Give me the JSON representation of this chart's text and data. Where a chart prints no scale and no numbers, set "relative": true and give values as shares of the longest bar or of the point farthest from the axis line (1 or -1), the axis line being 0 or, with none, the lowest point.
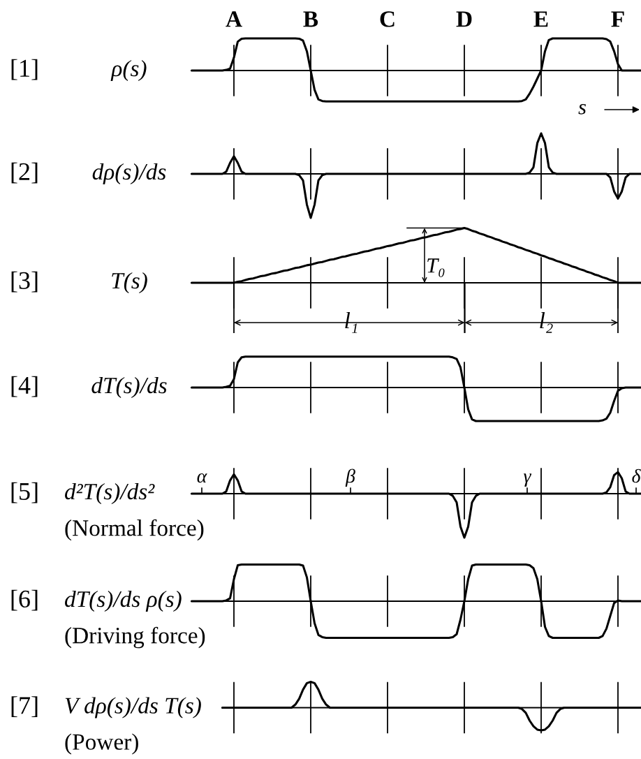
{
  "chart_data": [
    {
      "type": "line",
      "annotations": [
        "[1]"
      ],
      "ylabel": "ρ(s)",
      "xlabel": "s",
      "relative": true,
      "color": "#000000",
      "tick_labels": "x",
      "categories": [
        null,
        null,
        null,
        null,
        null,
        null,
        null,
        null,
        null,
        null,
        null,
        "A",
        null,
        null,
        null,
        null,
        null,
        null,
        null,
        null,
        null,
        null,
        null,
        null,
        null,
        null,
        null,
        null,
        null,
        null,
        null,
        "B",
        null,
        null,
        null,
        null,
        null,
        null,
        null,
        null,
        null,
        null,
        null,
        null,
        null,
        null,
        null,
        null,
        null,
        null,
        null,
        "C",
        null,
        null,
        null,
        null,
        null,
        null,
        null,
        null,
        null,
        null,
        null,
        null,
        null,
        null,
        null,
        null,
        null,
        null,
        null,
        "D",
        null,
        null,
        null,
        null,
        null,
        null,
        null,
        null,
        null,
        null,
        null,
        null,
        null,
        null,
        null,
        null,
        null,
        null,
        null,
        "E",
        null,
        null,
        null,
        null,
        null,
        null,
        null,
        null,
        null,
        null,
        null,
        null,
        null,
        null,
        null,
        null,
        null,
        null,
        null,
        "F",
        null,
        null,
        null,
        null,
        null,
        null
      ],
      "values": [
        0,
        0,
        0,
        0,
        0,
        0,
        0,
        0,
        0,
        0.02,
        0.06,
        0.4,
        0.9,
        0.99,
        1,
        1,
        1,
        1,
        1,
        1,
        1,
        1,
        1,
        1,
        1,
        1,
        1,
        1,
        0.99,
        0.93,
        0.6,
        0,
        -0.6,
        -0.9,
        -0.95,
        -0.96,
        -0.96,
        -0.96,
        -0.96,
        -0.96,
        -0.96,
        -0.96,
        -0.96,
        -0.96,
        -0.96,
        -0.96,
        -0.96,
        -0.96,
        -0.96,
        -0.96,
        -0.96,
        -0.96,
        -0.96,
        -0.96,
        -0.96,
        -0.96,
        -0.96,
        -0.96,
        -0.96,
        -0.96,
        -0.96,
        -0.96,
        -0.96,
        -0.96,
        -0.96,
        -0.96,
        -0.96,
        -0.96,
        -0.96,
        -0.96,
        -0.96,
        -0.96,
        -0.96,
        -0.96,
        -0.96,
        -0.96,
        -0.96,
        -0.96,
        -0.96,
        -0.96,
        -0.96,
        -0.96,
        -0.96,
        -0.96,
        -0.96,
        -0.96,
        -0.95,
        -0.9,
        -0.72,
        -0.5,
        -0.25,
        0,
        0.6,
        0.95,
        1,
        1,
        1,
        1,
        1,
        1,
        1,
        1,
        1,
        1,
        1,
        1,
        1,
        1,
        0.98,
        0.9,
        0.6,
        0.2,
        0,
        0,
        0,
        0,
        0,
        0
      ]
    },
    {
      "type": "line",
      "annotations": [
        "[2]"
      ],
      "ylabel": "dρ(s)/ds",
      "relative": true,
      "color": "#000000",
      "tick_labels": false,
      "categories": [
        null,
        null,
        null,
        null,
        null,
        null,
        null,
        null,
        null,
        null,
        null,
        null,
        null,
        null,
        null,
        null,
        null,
        null,
        null,
        null,
        null,
        null,
        null,
        null,
        null,
        null,
        null,
        null,
        null,
        null,
        null,
        null,
        null,
        null,
        null,
        null,
        null,
        null,
        null,
        null,
        null,
        null,
        null,
        null,
        null,
        null,
        null,
        null,
        null,
        null,
        null,
        null,
        null,
        null,
        null,
        null,
        null,
        null,
        null,
        null,
        null,
        null,
        null,
        null,
        null,
        null,
        null,
        null,
        null,
        null,
        null,
        null,
        null,
        null,
        null,
        null,
        null,
        null,
        null,
        null,
        null,
        null,
        null,
        null,
        null,
        null,
        null,
        null,
        null,
        null,
        null,
        null,
        null,
        null,
        null,
        null,
        null,
        null,
        null,
        null,
        null,
        null,
        null,
        null,
        null,
        null,
        null,
        null,
        null,
        null,
        null,
        null,
        null,
        null,
        null,
        null,
        null,
        null
      ],
      "values": [
        0,
        0,
        0,
        0,
        0,
        0,
        0,
        0,
        0,
        0.05,
        0.25,
        0.4,
        0.25,
        0.05,
        0,
        0,
        0,
        0,
        0,
        0,
        0,
        0,
        0,
        0,
        0,
        0,
        0,
        0,
        -0.03,
        -0.15,
        -0.7,
        -1,
        -0.7,
        -0.15,
        -0.03,
        0,
        0,
        0,
        0,
        0,
        0,
        0,
        0,
        0,
        0,
        0,
        0,
        0,
        0,
        0,
        0,
        0,
        0,
        0,
        0,
        0,
        0,
        0,
        0,
        0,
        0,
        0,
        0,
        0,
        0,
        0,
        0,
        0,
        0,
        0,
        0,
        0,
        0,
        0,
        0,
        0,
        0,
        0,
        0,
        0,
        0,
        0,
        0,
        0,
        0,
        0,
        0,
        0,
        0.03,
        0.15,
        0.7,
        0.92,
        0.7,
        0.15,
        0.03,
        0,
        0,
        0,
        0,
        0,
        0,
        0,
        0,
        0,
        0,
        0,
        0,
        0,
        0,
        -0.08,
        -0.4,
        -0.56,
        -0.4,
        -0.08,
        0,
        0,
        0,
        0
      ]
    },
    {
      "type": "line",
      "annotations": [
        "[3]",
        "T₀",
        "l₁",
        "l₂"
      ],
      "ylabel": "T(s)",
      "relative": true,
      "color": "#000000",
      "tick_labels": false,
      "categories": [
        null,
        null,
        null,
        null,
        null,
        null,
        null,
        null,
        null,
        null,
        null,
        null,
        null,
        null,
        null,
        null,
        null,
        null,
        null,
        null,
        null,
        null,
        null,
        null,
        null,
        null,
        null,
        null,
        null,
        null,
        null,
        null,
        null,
        null,
        null,
        null,
        null,
        null,
        null,
        null,
        null,
        null,
        null,
        null,
        null,
        null,
        null,
        null,
        null,
        null,
        null,
        null,
        null,
        null,
        null,
        null,
        null,
        null,
        null,
        null,
        null,
        null,
        null,
        null,
        null,
        null,
        null,
        null,
        null,
        null,
        null,
        null,
        null,
        null,
        null,
        null,
        null,
        null,
        null,
        null,
        null,
        null,
        null,
        null,
        null,
        null,
        null,
        null,
        null,
        null,
        null,
        null,
        null,
        null,
        null,
        null,
        null,
        null,
        null,
        null,
        null,
        null,
        null,
        null,
        null,
        null,
        null,
        null,
        null,
        null,
        null,
        null,
        null,
        null,
        null,
        null,
        null,
        null
      ],
      "values": [
        0,
        0,
        0,
        0,
        0,
        0,
        0,
        0,
        0,
        0,
        0,
        0,
        0.02,
        0.03,
        0.05,
        0.07,
        0.08,
        0.1,
        0.12,
        0.13,
        0.15,
        0.17,
        0.18,
        0.2,
        0.22,
        0.23,
        0.25,
        0.27,
        0.28,
        0.3,
        0.32,
        0.33,
        0.35,
        0.37,
        0.38,
        0.4,
        0.42,
        0.43,
        0.45,
        0.47,
        0.48,
        0.5,
        0.52,
        0.53,
        0.55,
        0.57,
        0.58,
        0.6,
        0.62,
        0.63,
        0.65,
        0.67,
        0.68,
        0.7,
        0.72,
        0.73,
        0.75,
        0.77,
        0.78,
        0.8,
        0.82,
        0.83,
        0.85,
        0.87,
        0.88,
        0.9,
        0.92,
        0.93,
        0.95,
        0.97,
        0.98,
        1,
        0.98,
        0.95,
        0.93,
        0.9,
        0.88,
        0.85,
        0.83,
        0.8,
        0.78,
        0.75,
        0.73,
        0.7,
        0.68,
        0.65,
        0.63,
        0.6,
        0.58,
        0.55,
        0.53,
        0.5,
        0.48,
        0.45,
        0.43,
        0.4,
        0.38,
        0.35,
        0.33,
        0.3,
        0.28,
        0.25,
        0.23,
        0.2,
        0.18,
        0.15,
        0.13,
        0.1,
        0.08,
        0.05,
        0.03,
        0,
        0,
        0,
        0,
        0,
        0,
        0
      ]
    },
    {
      "type": "line",
      "annotations": [
        "[4]"
      ],
      "ylabel": "dT(s)/ds",
      "relative": true,
      "color": "#000000",
      "tick_labels": false,
      "categories": [
        null,
        null,
        null,
        null,
        null,
        null,
        null,
        null,
        null,
        null,
        null,
        null,
        null,
        null,
        null,
        null,
        null,
        null,
        null,
        null,
        null,
        null,
        null,
        null,
        null,
        null,
        null,
        null,
        null,
        null,
        null,
        null,
        null,
        null,
        null,
        null,
        null,
        null,
        null,
        null,
        null,
        null,
        null,
        null,
        null,
        null,
        null,
        null,
        null,
        null,
        null,
        null,
        null,
        null,
        null,
        null,
        null,
        null,
        null,
        null,
        null,
        null,
        null,
        null,
        null,
        null,
        null,
        null,
        null,
        null,
        null,
        null,
        null,
        null,
        null,
        null,
        null,
        null,
        null,
        null,
        null,
        null,
        null,
        null,
        null,
        null,
        null,
        null,
        null,
        null,
        null,
        null,
        null,
        null,
        null,
        null,
        null,
        null,
        null,
        null,
        null,
        null,
        null,
        null,
        null,
        null,
        null,
        null,
        null,
        null,
        null,
        null,
        null,
        null,
        null,
        null,
        null,
        null
      ],
      "values": [
        0,
        0,
        0,
        0,
        0,
        0,
        0,
        0,
        0,
        0.02,
        0.05,
        0.25,
        0.75,
        0.9,
        0.92,
        0.92,
        0.92,
        0.92,
        0.92,
        0.92,
        0.92,
        0.92,
        0.92,
        0.92,
        0.92,
        0.92,
        0.92,
        0.92,
        0.92,
        0.92,
        0.92,
        0.92,
        0.92,
        0.92,
        0.92,
        0.92,
        0.92,
        0.92,
        0.92,
        0.92,
        0.92,
        0.92,
        0.92,
        0.92,
        0.92,
        0.92,
        0.92,
        0.92,
        0.92,
        0.92,
        0.92,
        0.92,
        0.92,
        0.92,
        0.92,
        0.92,
        0.92,
        0.92,
        0.92,
        0.92,
        0.92,
        0.92,
        0.92,
        0.92,
        0.92,
        0.92,
        0.92,
        0.92,
        0.9,
        0.85,
        0.6,
        0,
        -0.65,
        -0.95,
        -1,
        -1,
        -1,
        -1,
        -1,
        -1,
        -1,
        -1,
        -1,
        -1,
        -1,
        -1,
        -1,
        -1,
        -1,
        -1,
        -1,
        -1,
        -1,
        -1,
        -1,
        -1,
        -1,
        -1,
        -1,
        -1,
        -1,
        -1,
        -1,
        -1,
        -1,
        -1,
        -1,
        -0.98,
        -0.93,
        -0.75,
        -0.4,
        -0.1,
        -0.02,
        0,
        0,
        0,
        0,
        0
      ]
    },
    {
      "type": "line",
      "annotations": [
        "[5]",
        "α",
        "β",
        "γ",
        "δ"
      ],
      "ylabel": "d²T(s)/ds²\n(Normal force)",
      "relative": true,
      "color": "#000000",
      "tick_labels": false,
      "categories": [
        null,
        null,
        null,
        null,
        null,
        null,
        null,
        null,
        null,
        null,
        null,
        null,
        null,
        null,
        null,
        null,
        null,
        null,
        null,
        null,
        null,
        null,
        null,
        null,
        null,
        null,
        null,
        null,
        null,
        null,
        null,
        null,
        null,
        null,
        null,
        null,
        null,
        null,
        null,
        null,
        null,
        null,
        null,
        null,
        null,
        null,
        null,
        null,
        null,
        null,
        null,
        null,
        null,
        null,
        null,
        null,
        null,
        null,
        null,
        null,
        null,
        null,
        null,
        null,
        null,
        null,
        null,
        null,
        null,
        null,
        null,
        null,
        null,
        null,
        null,
        null,
        null,
        null,
        null,
        null,
        null,
        null,
        null,
        null,
        null,
        null,
        null,
        null,
        null,
        null,
        null,
        null,
        null,
        null,
        null,
        null,
        null,
        null,
        null,
        null,
        null,
        null,
        null,
        null,
        null,
        null,
        null,
        null,
        null,
        null,
        null,
        null,
        null,
        null,
        null,
        null,
        null,
        null
      ],
      "values": [
        0,
        0,
        0,
        0,
        0,
        0,
        0,
        0,
        0,
        0.05,
        0.3,
        0.44,
        0.3,
        0.05,
        0,
        0,
        0,
        0,
        0,
        0,
        0,
        0,
        0,
        0,
        0,
        0,
        0,
        0,
        0,
        0,
        0,
        0,
        0,
        0,
        0,
        0,
        0,
        0,
        0,
        0,
        0,
        0,
        0,
        0,
        0,
        0,
        0,
        0,
        0,
        0,
        0,
        0,
        0,
        0,
        0,
        0,
        0,
        0,
        0,
        0,
        0,
        0,
        0,
        0,
        0,
        0,
        0,
        0,
        -0.05,
        -0.2,
        -0.75,
        -1,
        -0.75,
        -0.2,
        -0.05,
        0,
        0,
        0,
        0,
        0,
        0,
        0,
        0,
        0,
        0,
        0,
        0,
        0,
        0,
        0,
        0,
        0,
        0,
        0,
        0,
        0,
        0,
        0,
        0,
        0,
        0,
        0,
        0,
        0,
        0,
        0,
        0,
        0,
        0.03,
        0.15,
        0.42,
        0.49,
        0.35,
        0.05,
        0,
        0,
        0,
        0
      ]
    },
    {
      "type": "line",
      "annotations": [
        "[6]"
      ],
      "ylabel": "dT(s)/ds ρ(s)\n(Driving force)",
      "relative": true,
      "color": "#000000",
      "tick_labels": false,
      "categories": [
        null,
        null,
        null,
        null,
        null,
        null,
        null,
        null,
        null,
        null,
        null,
        null,
        null,
        null,
        null,
        null,
        null,
        null,
        null,
        null,
        null,
        null,
        null,
        null,
        null,
        null,
        null,
        null,
        null,
        null,
        null,
        null,
        null,
        null,
        null,
        null,
        null,
        null,
        null,
        null,
        null,
        null,
        null,
        null,
        null,
        null,
        null,
        null,
        null,
        null,
        null,
        null,
        null,
        null,
        null,
        null,
        null,
        null,
        null,
        null,
        null,
        null,
        null,
        null,
        null,
        null,
        null,
        null,
        null,
        null,
        null,
        null,
        null,
        null,
        null,
        null,
        null,
        null,
        null,
        null,
        null,
        null,
        null,
        null,
        null,
        null,
        null,
        null,
        null,
        null,
        null,
        null,
        null,
        null,
        null,
        null,
        null,
        null,
        null,
        null,
        null,
        null,
        null,
        null,
        null,
        null,
        null,
        null,
        null,
        null,
        null,
        null,
        null,
        null,
        null,
        null,
        null,
        null
      ],
      "values": [
        0,
        0,
        0,
        0,
        0,
        0,
        0,
        0,
        0,
        0.02,
        0.08,
        0.6,
        0.98,
        1,
        1,
        1,
        1,
        1,
        1,
        1,
        1,
        1,
        1,
        1,
        1,
        1,
        1,
        1,
        1,
        0.97,
        0.65,
        0,
        -0.6,
        -0.92,
        -0.98,
        -1,
        -1,
        -1,
        -1,
        -1,
        -1,
        -1,
        -1,
        -1,
        -1,
        -1,
        -1,
        -1,
        -1,
        -1,
        -1,
        -1,
        -1,
        -1,
        -1,
        -1,
        -1,
        -1,
        -1,
        -1,
        -1,
        -1,
        -1,
        -1,
        -1,
        -1,
        -1,
        -1,
        -0.98,
        -0.9,
        -0.5,
        0,
        0.6,
        0.97,
        1,
        1,
        1,
        1,
        1,
        1,
        1,
        1,
        1,
        1,
        1,
        1,
        1,
        1,
        0.98,
        0.9,
        0.6,
        0,
        -0.7,
        -0.95,
        -1,
        -1,
        -1,
        -1,
        -1,
        -1,
        -1,
        -1,
        -1,
        -1,
        -1,
        -1,
        -1,
        -0.95,
        -0.75,
        -0.4,
        -0.05,
        0.02,
        0,
        0,
        0,
        0,
        0,
        0
      ]
    },
    {
      "type": "line",
      "annotations": [
        "[7]"
      ],
      "ylabel": "V dρ(s)/ds T(s)\n(Power)",
      "relative": true,
      "color": "#000000",
      "tick_labels": false,
      "categories": [
        null,
        null,
        null,
        null,
        null,
        null,
        null,
        null,
        null,
        null,
        null,
        null,
        null,
        null,
        null,
        null,
        null,
        null,
        null,
        null,
        null,
        null,
        null,
        null,
        null,
        null,
        null,
        null,
        null,
        null,
        null,
        null,
        null,
        null,
        null,
        null,
        null,
        null,
        null,
        null,
        null,
        null,
        null,
        null,
        null,
        null,
        null,
        null,
        null,
        null,
        null,
        null,
        null,
        null,
        null,
        null,
        null,
        null,
        null,
        null,
        null,
        null,
        null,
        null,
        null,
        null,
        null,
        null,
        null,
        null,
        null,
        null,
        null,
        null,
        null,
        null,
        null,
        null,
        null,
        null,
        null,
        null,
        null,
        null,
        null,
        null,
        null,
        null,
        null,
        null,
        null,
        null,
        null,
        null,
        null,
        null,
        null,
        null,
        null,
        null,
        null,
        null,
        null,
        null,
        null,
        null,
        null,
        null,
        null,
        null,
        null,
        null,
        null,
        null,
        null,
        null,
        null,
        null
      ],
      "values": [
        null,
        null,
        null,
        null,
        null,
        null,
        null,
        null,
        0,
        0,
        0,
        0,
        0,
        0,
        0,
        0,
        0,
        0,
        0,
        0,
        0,
        0,
        0,
        0,
        0,
        0,
        0,
        0.12,
        0.35,
        0.7,
        0.95,
        1,
        0.95,
        0.7,
        0.35,
        0.12,
        0,
        0,
        0,
        0,
        0,
        0,
        0,
        0,
        0,
        0,
        0,
        0,
        0,
        0,
        0,
        0,
        0,
        0,
        0,
        0,
        0,
        0,
        0,
        0,
        0,
        0,
        0,
        0,
        0,
        0,
        0,
        0,
        0,
        0,
        0,
        0,
        0,
        0,
        0,
        0,
        0,
        0,
        0,
        0,
        0,
        0,
        0,
        0,
        0,
        0,
        -0.05,
        -0.2,
        -0.5,
        -0.72,
        -0.85,
        -0.88,
        -0.85,
        -0.72,
        -0.5,
        -0.2,
        -0.05,
        0,
        0,
        0,
        0,
        0,
        0,
        0,
        0,
        0,
        0,
        0,
        0,
        0,
        0,
        0,
        0,
        0,
        0,
        0,
        0,
        0
      ]
    }
  ]
}
